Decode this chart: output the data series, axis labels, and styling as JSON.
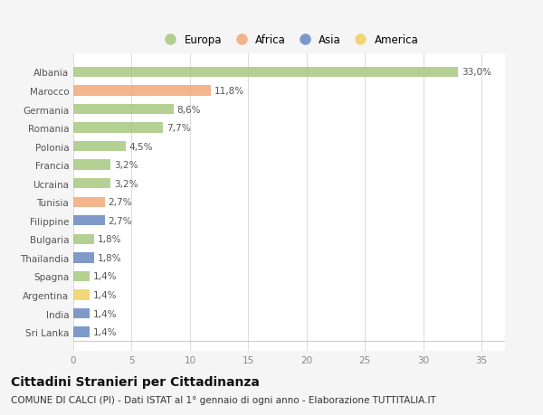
{
  "countries": [
    "Albania",
    "Marocco",
    "Germania",
    "Romania",
    "Polonia",
    "Francia",
    "Ucraina",
    "Tunisia",
    "Filippine",
    "Bulgaria",
    "Thailandia",
    "Spagna",
    "Argentina",
    "India",
    "Sri Lanka"
  ],
  "values": [
    33.0,
    11.8,
    8.6,
    7.7,
    4.5,
    3.2,
    3.2,
    2.7,
    2.7,
    1.8,
    1.8,
    1.4,
    1.4,
    1.4,
    1.4
  ],
  "labels": [
    "33,0%",
    "11,8%",
    "8,6%",
    "7,7%",
    "4,5%",
    "3,2%",
    "3,2%",
    "2,7%",
    "2,7%",
    "1,8%",
    "1,8%",
    "1,4%",
    "1,4%",
    "1,4%",
    "1,4%"
  ],
  "continents": [
    "Europa",
    "Africa",
    "Europa",
    "Europa",
    "Europa",
    "Europa",
    "Europa",
    "Africa",
    "Asia",
    "Europa",
    "Asia",
    "Europa",
    "America",
    "Asia",
    "Asia"
  ],
  "colors": {
    "Europa": "#a8c880",
    "Africa": "#f0a878",
    "Asia": "#6888c0",
    "America": "#f0d060"
  },
  "legend_order": [
    "Europa",
    "Africa",
    "Asia",
    "America"
  ],
  "xlim": [
    0,
    37
  ],
  "xticks": [
    0,
    5,
    10,
    15,
    20,
    25,
    30,
    35
  ],
  "title": "Cittadini Stranieri per Cittadinanza",
  "subtitle": "COMUNE DI CALCI (PI) - Dati ISTAT al 1° gennaio di ogni anno - Elaborazione TUTTITALIA.IT",
  "bg_color": "#f5f5f5",
  "bar_bg_color": "#ffffff",
  "title_fontsize": 10,
  "subtitle_fontsize": 7.5,
  "label_fontsize": 7.5,
  "tick_fontsize": 7.5,
  "legend_fontsize": 8.5
}
